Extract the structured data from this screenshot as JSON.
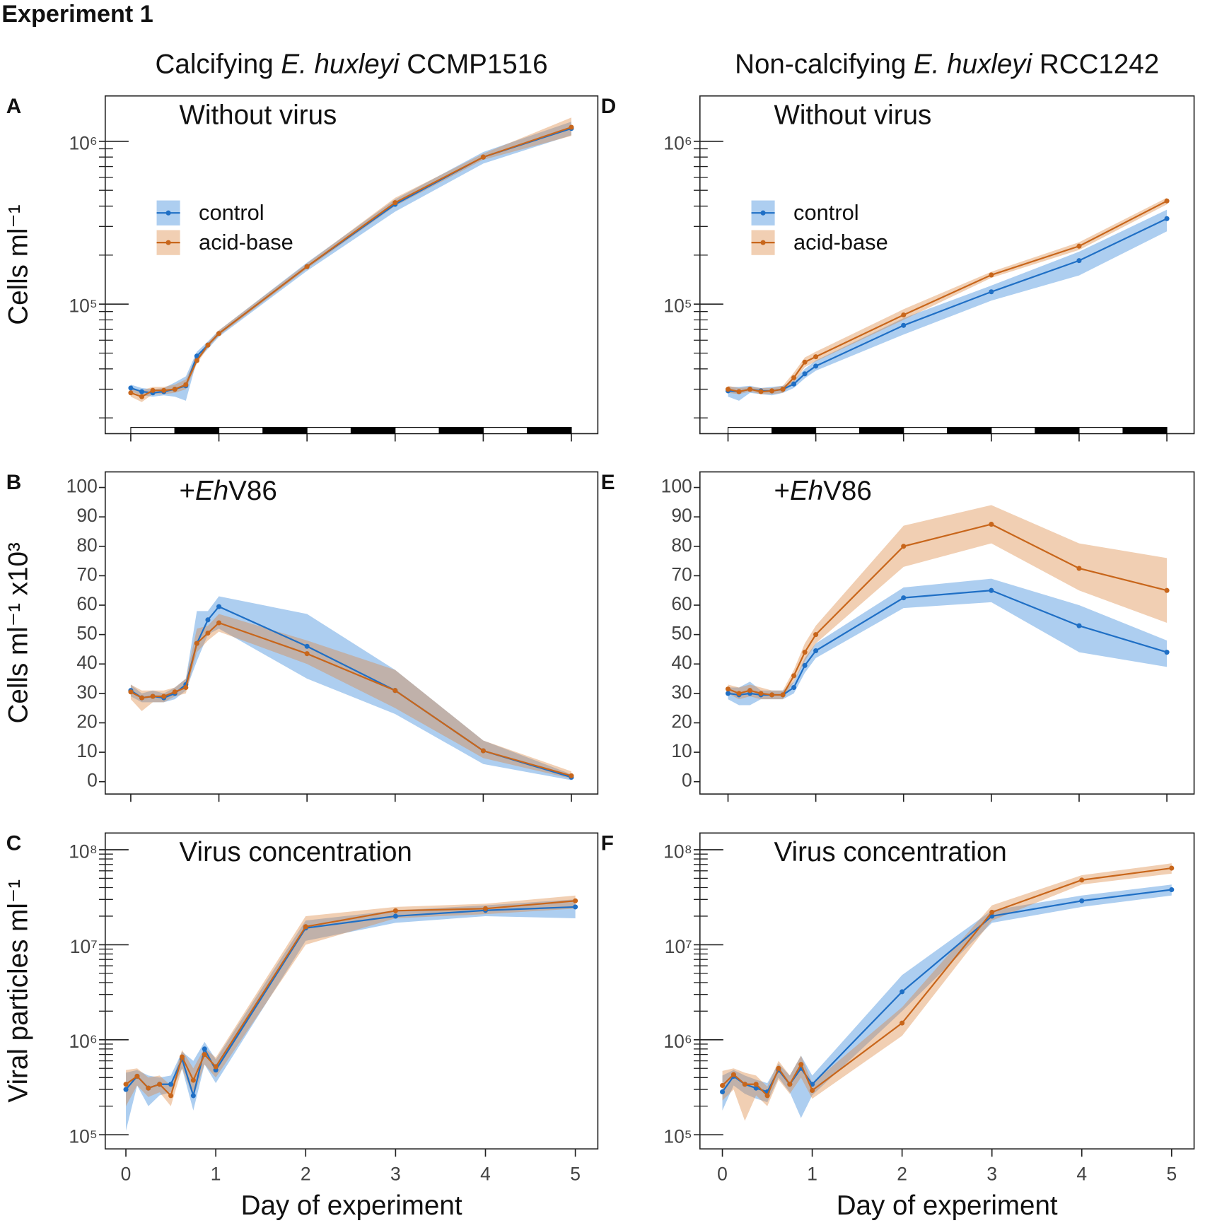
{
  "title": "Experiment 1",
  "column_titles": [
    {
      "parts": [
        "Calcifying ",
        "E. huxleyi",
        " CCMP1516"
      ],
      "italic": [
        1
      ]
    },
    {
      "parts": [
        "Non-calcifying ",
        "E. huxleyi",
        " RCC1242"
      ],
      "italic": [
        1
      ]
    }
  ],
  "chart_data": [
    {
      "type": "line",
      "letter": "A",
      "title": {
        "parts": [
          "Without virus"
        ],
        "italic": []
      },
      "ylabel": "Cells ml⁻¹",
      "log": true,
      "daynight": true,
      "legend": "left",
      "xlim": [
        -0.29,
        5.3
      ],
      "xticks": [
        0,
        1,
        2,
        3,
        4,
        5
      ],
      "ylim": [
        16000,
        1900000
      ],
      "yticks": [
        {
          "value": 100000,
          "label": "10⁵"
        },
        {
          "value": 1000000,
          "label": "10⁶"
        }
      ],
      "yminor": [
        20000,
        30000,
        40000,
        50000,
        60000,
        70000,
        80000,
        90000,
        200000,
        300000,
        400000,
        500000,
        600000,
        700000,
        800000,
        900000
      ],
      "x": [
        0,
        0.125,
        0.25,
        0.375,
        0.5,
        0.625,
        0.75,
        0.875,
        1,
        2,
        3,
        4,
        5
      ],
      "series": [
        {
          "name": "control",
          "color": "#1f6fc5",
          "band": "rgba(40,125,215,0.38)",
          "values": [
            30500,
            29000,
            28500,
            29000,
            30000,
            31500,
            48000,
            56000,
            66000,
            170000,
            410000,
            800000,
            1200000
          ],
          "lower": [
            29000,
            27500,
            27000,
            27500,
            27000,
            25500,
            45000,
            53000,
            63000,
            160000,
            370000,
            730000,
            1090000
          ],
          "upper": [
            32000,
            30500,
            30000,
            30500,
            33000,
            36000,
            51000,
            59000,
            69000,
            180000,
            440000,
            860000,
            1320000
          ]
        },
        {
          "name": "acid-base",
          "color": "#c8661b",
          "band": "rgba(220,135,65,0.4)",
          "values": [
            28500,
            27000,
            29500,
            29500,
            30000,
            32000,
            45000,
            56000,
            66000,
            170000,
            420000,
            800000,
            1220000
          ],
          "lower": [
            27000,
            25000,
            28000,
            28000,
            28500,
            30000,
            43000,
            54000,
            64000,
            165000,
            400000,
            770000,
            1080000
          ],
          "upper": [
            30000,
            29500,
            31000,
            31000,
            32000,
            34500,
            48000,
            58000,
            69000,
            178000,
            450000,
            840000,
            1400000
          ]
        }
      ]
    },
    {
      "type": "line",
      "letter": "B",
      "title": {
        "parts": [
          "+",
          "Eh",
          "V86"
        ],
        "italic": [
          1
        ]
      },
      "ylabel": "Cells ml⁻¹ x10³",
      "log": false,
      "xlim": [
        -0.29,
        5.3
      ],
      "xticks": [
        0,
        1,
        2,
        3,
        4,
        5
      ],
      "ylim": [
        -4.2,
        105.3
      ],
      "yticks": [
        0,
        10,
        20,
        30,
        40,
        50,
        60,
        70,
        80,
        90,
        100
      ],
      "x": [
        0,
        0.125,
        0.25,
        0.375,
        0.5,
        0.625,
        0.75,
        0.875,
        1,
        2,
        3,
        4,
        5
      ],
      "series": [
        {
          "color": "#1f6fc5",
          "band": "rgba(40,125,215,0.38)",
          "values": [
            31,
            28.5,
            29,
            28.5,
            30,
            33,
            47,
            55,
            59.5,
            46,
            31,
            10.5,
            1.5
          ],
          "lower": [
            29,
            27,
            27,
            27,
            28,
            31,
            41,
            50,
            52,
            35,
            23,
            6,
            0.5
          ],
          "upper": [
            33,
            30,
            31,
            30,
            32,
            35,
            58,
            58,
            63,
            57,
            38,
            14,
            2.5
          ]
        },
        {
          "color": "#c8661b",
          "band": "rgba(220,135,65,0.4)",
          "values": [
            30.5,
            28.5,
            29,
            29,
            30.5,
            32,
            47,
            50.5,
            54,
            43.5,
            31,
            10.5,
            2
          ],
          "lower": [
            28,
            24,
            27,
            27,
            29,
            30,
            44,
            48,
            51,
            40,
            25,
            8,
            1
          ],
          "upper": [
            33,
            31,
            31,
            31,
            32,
            35,
            52,
            53,
            57,
            48,
            38,
            14,
            3.5
          ]
        }
      ]
    },
    {
      "type": "line",
      "letter": "C",
      "title": {
        "parts": [
          "Virus concentration"
        ],
        "italic": []
      },
      "ylabel": "Viral particles ml⁻¹",
      "xlabel": "Day of experiment",
      "log": true,
      "xtick_labels": true,
      "xlim": [
        -0.23,
        5.25
      ],
      "xticks": [
        0,
        1,
        2,
        3,
        4,
        5
      ],
      "ylim": [
        71000,
        150000000
      ],
      "yticks": [
        {
          "value": 100000,
          "label": "10⁵"
        },
        {
          "value": 1000000,
          "label": "10⁶"
        },
        {
          "value": 10000000,
          "label": "10⁷"
        },
        {
          "value": 100000000,
          "label": "10⁸"
        }
      ],
      "yminor": [
        200000,
        300000,
        400000,
        500000,
        600000,
        700000,
        800000,
        900000,
        2000000,
        3000000,
        4000000,
        5000000,
        6000000,
        7000000,
        8000000,
        9000000,
        20000000,
        30000000,
        40000000,
        50000000,
        60000000,
        70000000,
        80000000,
        90000000
      ],
      "x": [
        0,
        0.125,
        0.25,
        0.375,
        0.5,
        0.625,
        0.75,
        0.875,
        1,
        2,
        3,
        4,
        5
      ],
      "series": [
        {
          "color": "#1f6fc5",
          "band": "rgba(40,125,215,0.38)",
          "values": [
            300000,
            413000,
            310000,
            340000,
            340000,
            627000,
            258000,
            800000,
            480000,
            15000000,
            20000000,
            23000000,
            25000000
          ],
          "lower": [
            110000,
            330000,
            200000,
            260000,
            280000,
            500000,
            180000,
            550000,
            350000,
            11000000,
            17000000,
            20000000,
            19000000
          ],
          "upper": [
            450000,
            480000,
            420000,
            400000,
            420000,
            750000,
            600000,
            950000,
            620000,
            18000000,
            23000000,
            26000000,
            30000000
          ]
        },
        {
          "color": "#c8661b",
          "band": "rgba(220,135,65,0.4)",
          "values": [
            340000,
            413000,
            310000,
            340000,
            258000,
            660000,
            375000,
            700000,
            520000,
            15500000,
            22800000,
            24000000,
            29000000
          ],
          "lower": [
            200000,
            330000,
            250000,
            280000,
            200000,
            500000,
            250000,
            550000,
            400000,
            10000000,
            19000000,
            21000000,
            24000000
          ],
          "upper": [
            480000,
            500000,
            400000,
            420000,
            330000,
            780000,
            500000,
            820000,
            650000,
            20000000,
            25000000,
            27000000,
            33000000
          ]
        }
      ]
    },
    {
      "type": "line",
      "letter": "D",
      "title": {
        "parts": [
          "Without virus"
        ],
        "italic": []
      },
      "log": true,
      "daynight": true,
      "legend": "left",
      "xlim": [
        -0.32,
        5.31
      ],
      "xticks": [
        0,
        1,
        2,
        3,
        4,
        5
      ],
      "ylim": [
        16000,
        1900000
      ],
      "yticks": [
        {
          "value": 100000,
          "label": "10⁵"
        },
        {
          "value": 1000000,
          "label": "10⁶"
        }
      ],
      "yminor": [
        20000,
        30000,
        40000,
        50000,
        60000,
        70000,
        80000,
        90000,
        200000,
        300000,
        400000,
        500000,
        600000,
        700000,
        800000,
        900000
      ],
      "x": [
        0,
        0.125,
        0.25,
        0.375,
        0.5,
        0.625,
        0.75,
        0.875,
        1,
        2,
        3,
        4,
        5
      ],
      "series": [
        {
          "name": "control",
          "color": "#1f6fc5",
          "band": "rgba(40,125,215,0.38)",
          "values": [
            29300,
            29000,
            30000,
            29300,
            29300,
            30000,
            32300,
            37300,
            41600,
            74000,
            119000,
            185000,
            335000
          ],
          "lower": [
            27000,
            25500,
            28500,
            28000,
            27500,
            28500,
            30500,
            35000,
            39000,
            65000,
            105000,
            150000,
            280000
          ],
          "upper": [
            31000,
            31000,
            31500,
            30500,
            31000,
            31500,
            34000,
            40000,
            45000,
            82000,
            130000,
            210000,
            380000
          ]
        },
        {
          "name": "acid-base",
          "color": "#c8661b",
          "band": "rgba(220,135,65,0.4)",
          "values": [
            30000,
            29000,
            30000,
            29000,
            29300,
            30000,
            35300,
            44000,
            47500,
            85800,
            151000,
            227000,
            430000
          ],
          "lower": [
            28500,
            28000,
            29000,
            28000,
            28000,
            28500,
            33000,
            41000,
            44500,
            80000,
            145000,
            215000,
            410000
          ],
          "upper": [
            31500,
            30500,
            31000,
            30500,
            30500,
            31500,
            38000,
            47000,
            51000,
            93000,
            158000,
            240000,
            450000
          ]
        }
      ]
    },
    {
      "type": "line",
      "letter": "E",
      "title": {
        "parts": [
          "+",
          "Eh",
          "V86"
        ],
        "italic": [
          1
        ]
      },
      "log": false,
      "xlim": [
        -0.32,
        5.31
      ],
      "xticks": [
        0,
        1,
        2,
        3,
        4,
        5
      ],
      "ylim": [
        -4.2,
        105.3
      ],
      "yticks": [
        0,
        10,
        20,
        30,
        40,
        50,
        60,
        70,
        80,
        90,
        100
      ],
      "x": [
        0,
        0.125,
        0.25,
        0.375,
        0.5,
        0.625,
        0.75,
        0.875,
        1,
        2,
        3,
        4,
        5
      ],
      "series": [
        {
          "color": "#1f6fc5",
          "band": "rgba(40,125,215,0.38)",
          "values": [
            30,
            29.5,
            30,
            29.5,
            29.5,
            29.5,
            32,
            39.5,
            44.5,
            62.5,
            65,
            53,
            44
          ],
          "lower": [
            28,
            26,
            26,
            28,
            28,
            28,
            30,
            37,
            42,
            59,
            61,
            44,
            39
          ],
          "upper": [
            32,
            32,
            34,
            31,
            31,
            31,
            34,
            42,
            47,
            66,
            69,
            60,
            48
          ]
        },
        {
          "color": "#c8661b",
          "band": "rgba(220,135,65,0.4)",
          "values": [
            31.5,
            30,
            31,
            30,
            29.5,
            29.5,
            36,
            44,
            50,
            80,
            87.5,
            72.5,
            65
          ],
          "lower": [
            30,
            28,
            29,
            28,
            28,
            28,
            34,
            41,
            47,
            73,
            81,
            65,
            54
          ],
          "upper": [
            33,
            32,
            33,
            32,
            31,
            31,
            38,
            47,
            53,
            87,
            94,
            81,
            76
          ]
        }
      ]
    },
    {
      "type": "line",
      "letter": "F",
      "title": {
        "parts": [
          "Virus concentration"
        ],
        "italic": []
      },
      "xlabel": "Day of experiment",
      "log": true,
      "xtick_labels": true,
      "xlim": [
        -0.25,
        5.25
      ],
      "xticks": [
        0,
        1,
        2,
        3,
        4,
        5
      ],
      "ylim": [
        71000,
        150000000
      ],
      "yticks": [
        {
          "value": 100000,
          "label": "10⁵"
        },
        {
          "value": 1000000,
          "label": "10⁶"
        },
        {
          "value": 10000000,
          "label": "10⁷"
        },
        {
          "value": 100000000,
          "label": "10⁸"
        }
      ],
      "yminor": [
        200000,
        300000,
        400000,
        500000,
        600000,
        700000,
        800000,
        900000,
        2000000,
        3000000,
        4000000,
        5000000,
        6000000,
        7000000,
        8000000,
        9000000,
        20000000,
        30000000,
        40000000,
        50000000,
        60000000,
        70000000,
        80000000,
        90000000
      ],
      "x": [
        0,
        0.125,
        0.25,
        0.375,
        0.5,
        0.625,
        0.75,
        0.875,
        1,
        2,
        3,
        4,
        5
      ],
      "series": [
        {
          "color": "#1f6fc5",
          "band": "rgba(40,125,215,0.38)",
          "values": [
            283000,
            413000,
            340000,
            310000,
            283000,
            480000,
            340000,
            500000,
            340000,
            3200000,
            20000000,
            29000000,
            38000000
          ],
          "lower": [
            180000,
            330000,
            270000,
            240000,
            220000,
            400000,
            280000,
            150000,
            260000,
            2000000,
            17000000,
            25000000,
            33000000
          ],
          "upper": [
            420000,
            480000,
            420000,
            380000,
            350000,
            560000,
            420000,
            680000,
            420000,
            4800000,
            23000000,
            33000000,
            43000000
          ]
        },
        {
          "color": "#c8661b",
          "band": "rgba(220,135,65,0.4)",
          "values": [
            330000,
            430000,
            340000,
            340000,
            258000,
            500000,
            340000,
            550000,
            293000,
            1500000,
            22000000,
            48000000,
            64000000
          ],
          "lower": [
            230000,
            300000,
            140000,
            260000,
            200000,
            380000,
            270000,
            400000,
            240000,
            1100000,
            18000000,
            43000000,
            56000000
          ],
          "upper": [
            470000,
            500000,
            450000,
            420000,
            320000,
            600000,
            420000,
            680000,
            350000,
            2200000,
            26000000,
            54000000,
            72000000
          ]
        }
      ]
    }
  ]
}
